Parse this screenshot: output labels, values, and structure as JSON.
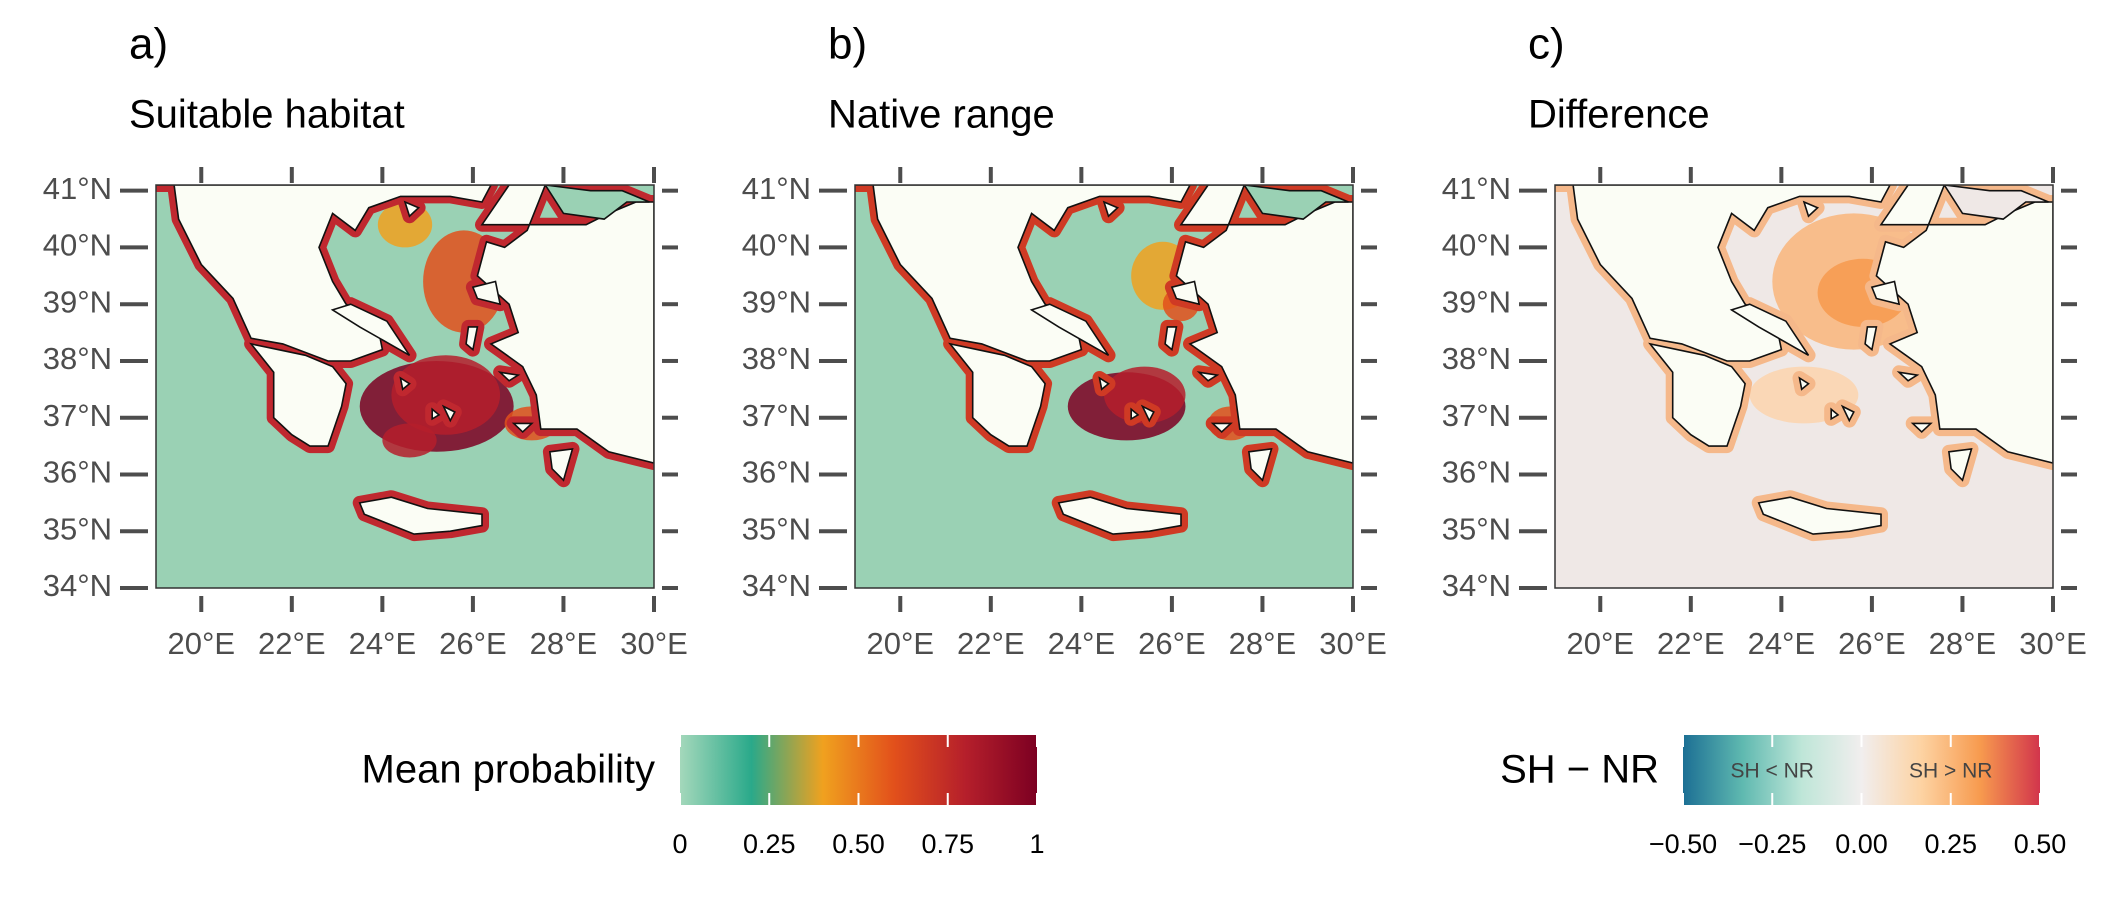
{
  "panels": [
    {
      "tag": "a)",
      "title": "Suitable habitat"
    },
    {
      "tag": "b)",
      "title": "Native range"
    },
    {
      "tag": "c)",
      "title": "Difference"
    }
  ],
  "xlim": [
    19,
    30
  ],
  "ylim": [
    34,
    41.1
  ],
  "lat_ticks": [
    {
      "value": 34,
      "label": "34°N"
    },
    {
      "value": 35,
      "label": "35°N"
    },
    {
      "value": 36,
      "label": "36°N"
    },
    {
      "value": 37,
      "label": "37°N"
    },
    {
      "value": 38,
      "label": "38°N"
    },
    {
      "value": 39,
      "label": "39°N"
    },
    {
      "value": 40,
      "label": "40°N"
    },
    {
      "value": 41,
      "label": "41°N"
    }
  ],
  "lon_ticks": [
    {
      "value": 20,
      "label": "20°E"
    },
    {
      "value": 22,
      "label": "22°E"
    },
    {
      "value": 24,
      "label": "24°E"
    },
    {
      "value": 26,
      "label": "26°E"
    },
    {
      "value": 28,
      "label": "28°E"
    },
    {
      "value": 30,
      "label": "30°E"
    }
  ],
  "legends": [
    {
      "title": "Mean probability",
      "lim": [
        0,
        1
      ],
      "ticks": [
        0,
        0.25,
        {
          "value": 0.5,
          "label": "0.50"
        },
        0.75,
        1
      ],
      "colors": [
        "#a4d8bb",
        "#2aa98a",
        "#f0a11f",
        "#e2501b",
        "#b51f2b",
        "#7c0022"
      ]
    },
    {
      "title": "SH − NR",
      "lim": [
        -0.5,
        0.5
      ],
      "ticks": [
        {
          "value": -0.5,
          "label": "−0.50"
        },
        {
          "value": -0.25,
          "label": "−0.25"
        },
        {
          "value": 0,
          "label": "0.00"
        },
        0.25,
        {
          "value": 0.5,
          "label": "0.50"
        }
      ],
      "colors": [
        "#1c6f94",
        "#5fb9b0",
        "#bfe6d8",
        "#f1eeee",
        "#fdd3a3",
        "#f79a4e",
        "#d2354c"
      ],
      "annotations": [
        "SH < NR",
        "SH > NR"
      ]
    }
  ]
}
